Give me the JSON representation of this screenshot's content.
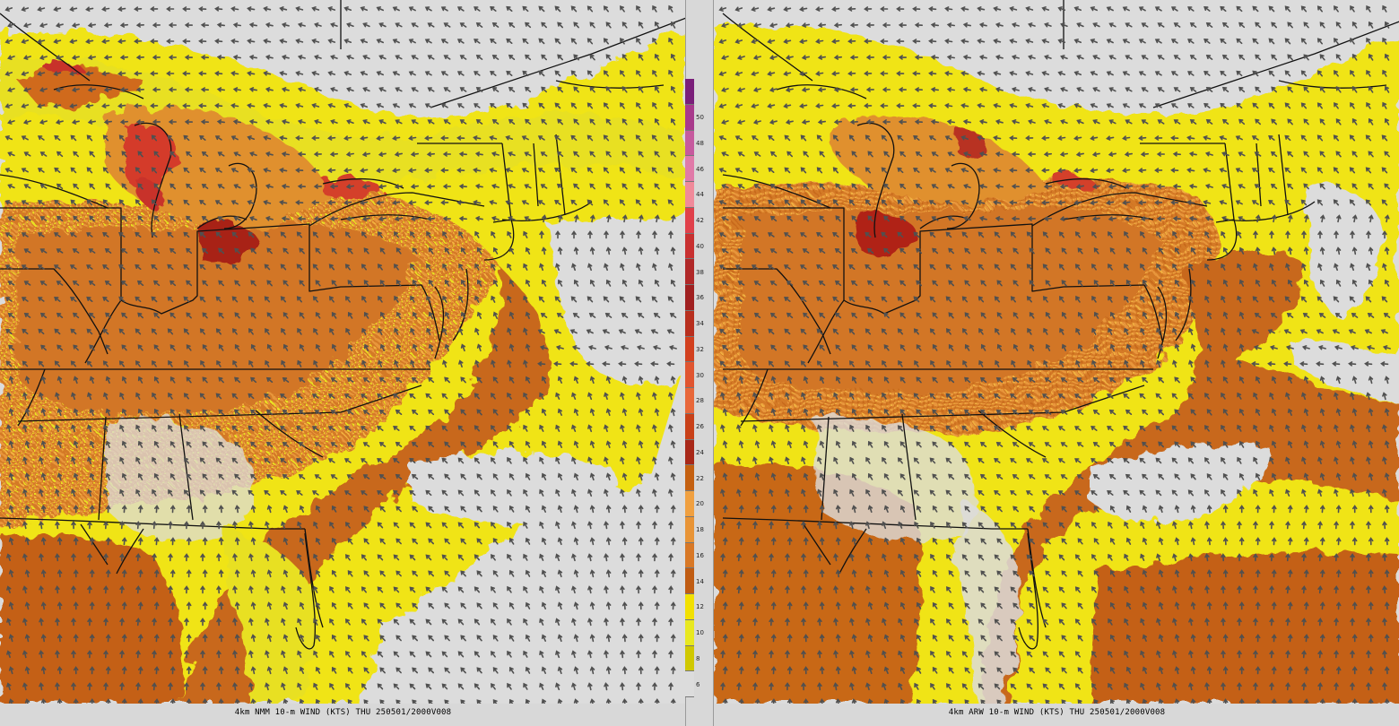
{
  "panels": [
    {
      "id": "left",
      "caption": "4km NMM 10-m WIND (KTS) THU 250501/2000V008"
    },
    {
      "id": "right",
      "caption": "4km ARW 10-m WIND (KTS) THU 250501/2000V008"
    }
  ],
  "colorbar": {
    "ticks": [
      "50",
      "48",
      "46",
      "44",
      "42",
      "40",
      "38",
      "36",
      "34",
      "32",
      "30",
      "28",
      "26",
      "24",
      "22",
      "20",
      "18",
      "16",
      "14",
      "12",
      "10",
      "8",
      "6"
    ],
    "colors": [
      "#7a1e7a",
      "#a83a8c",
      "#c65a9e",
      "#e07aa8",
      "#f08a9a",
      "#e0404a",
      "#c83030",
      "#b02828",
      "#a02020",
      "#b82f1e",
      "#d2401e",
      "#e05530",
      "#e8683a",
      "#c84018",
      "#a82818",
      "#c46010",
      "#f0a040",
      "#e89436",
      "#d87826",
      "#c05c12",
      "#f2e000",
      "#e8e820",
      "#d0c800"
    ],
    "below_color": "#dcdcdc"
  }
}
